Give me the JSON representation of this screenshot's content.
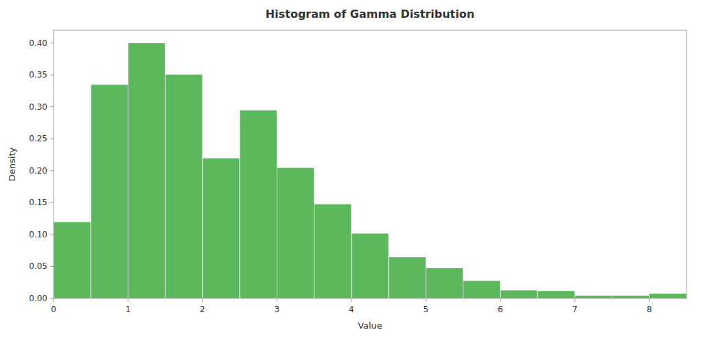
{
  "chart_data": {
    "type": "histogram",
    "title": "Histogram of Gamma Distribution",
    "x_label": "Value",
    "y_label": "Density",
    "color": "#5cb85c",
    "bins": [
      0.0,
      0.5,
      1.0,
      1.5,
      2.0,
      2.5,
      3.0,
      3.5,
      4.0,
      4.5,
      5.0,
      5.5,
      6.0,
      6.5,
      7.0,
      7.5,
      8.0,
      8.5
    ],
    "values": [
      0.12,
      0.335,
      0.4,
      0.351,
      0.22,
      0.295,
      0.205,
      0.148,
      0.102,
      0.065,
      0.048,
      0.028,
      0.013,
      0.012,
      0.005,
      0.005,
      0.008
    ],
    "xlim": [
      0,
      8.5
    ],
    "ylim": [
      0,
      0.42
    ],
    "xticks": [
      0,
      1,
      2,
      3,
      4,
      5,
      6,
      7,
      8
    ],
    "yticks": [
      {
        "value": 0,
        "label": "0.00"
      },
      0.05,
      {
        "value": 0.1,
        "label": "0.10"
      },
      0.15,
      {
        "value": 0.2,
        "label": "0.20"
      },
      0.25,
      {
        "value": 0.3,
        "label": "0.30"
      },
      0.35,
      {
        "value": 0.4,
        "label": "0.40"
      }
    ],
    "grid": false
  }
}
